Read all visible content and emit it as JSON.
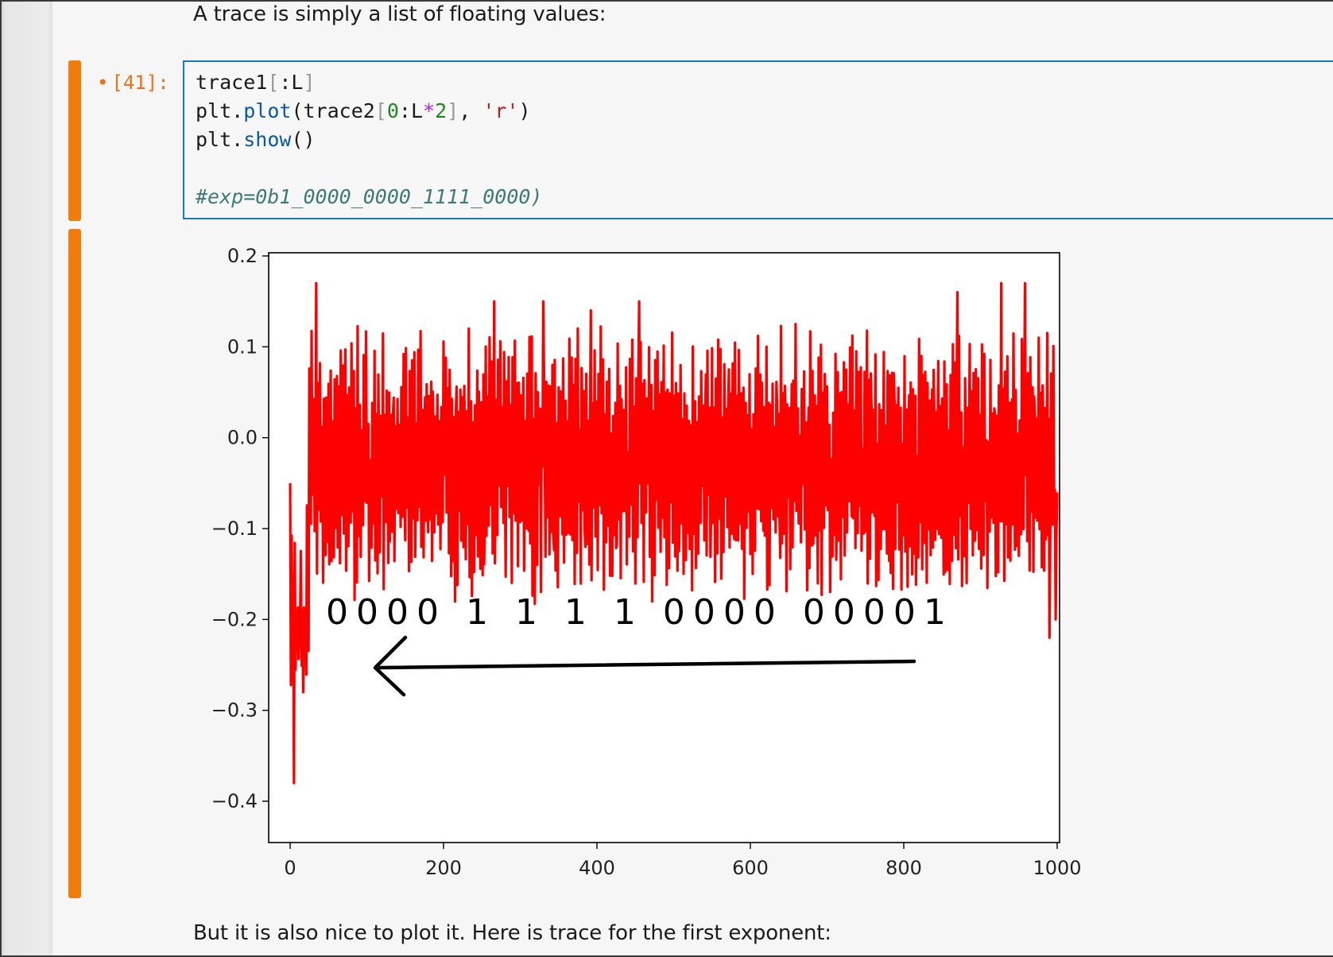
{
  "markdown": {
    "intro": "A trace is simply a list of floating values:",
    "outro": "But it is also nice to plot it. Here is trace for the first exponent:"
  },
  "cell": {
    "prompt": "[41]:",
    "prompt_marker": "•",
    "code_lines": [
      [
        {
          "t": "trace1",
          "c": ""
        },
        {
          "t": "[",
          "c": "brk"
        },
        {
          "t": ":L",
          "c": ""
        },
        {
          "t": "]",
          "c": "brk"
        }
      ],
      [
        {
          "t": "plt.",
          "c": ""
        },
        {
          "t": "plot",
          "c": "fn"
        },
        {
          "t": "(trace2",
          "c": ""
        },
        {
          "t": "[",
          "c": "brk"
        },
        {
          "t": "0",
          "c": "num"
        },
        {
          "t": ":L",
          "c": ""
        },
        {
          "t": "*",
          "c": "op"
        },
        {
          "t": "2",
          "c": "num"
        },
        {
          "t": "]",
          "c": "brk"
        },
        {
          "t": ", ",
          "c": ""
        },
        {
          "t": "'r'",
          "c": "str"
        },
        {
          "t": ")",
          "c": ""
        }
      ],
      [
        {
          "t": "plt.",
          "c": ""
        },
        {
          "t": "show",
          "c": "fn"
        },
        {
          "t": "()",
          "c": ""
        }
      ],
      [],
      [
        {
          "t": "#exp=0b1_0000_0000_1111_0000)",
          "c": "cmt"
        }
      ]
    ]
  },
  "chart_data": {
    "type": "line",
    "color": "#ff0000",
    "xlim": [
      0,
      1000
    ],
    "ylim": [
      -0.4,
      0.2
    ],
    "xticks": [
      "0",
      "200",
      "400",
      "600",
      "800",
      "1000"
    ],
    "yticks": [
      "0.2",
      "0.1",
      "0.0",
      "−0.1",
      "−0.2",
      "−0.3",
      "−0.4"
    ],
    "series_summary": {
      "min": -0.38,
      "max": 0.18,
      "typical_range": [
        -0.15,
        0.09
      ],
      "peaks": [
        {
          "x": 34,
          "y": 0.17
        },
        {
          "x": 266,
          "y": 0.15
        },
        {
          "x": 330,
          "y": 0.15
        },
        {
          "x": 392,
          "y": 0.14
        },
        {
          "x": 455,
          "y": 0.15
        },
        {
          "x": 870,
          "y": 0.16
        },
        {
          "x": 927,
          "y": 0.17
        },
        {
          "x": 958,
          "y": 0.17
        }
      ],
      "troughs": [
        {
          "x": 5,
          "y": -0.38
        },
        {
          "x": 17,
          "y": -0.28
        },
        {
          "x": 990,
          "y": -0.22
        }
      ]
    },
    "annotation": {
      "text": "0000 1 1 1 1 0000 00001",
      "arrow": "right-to-left"
    }
  }
}
